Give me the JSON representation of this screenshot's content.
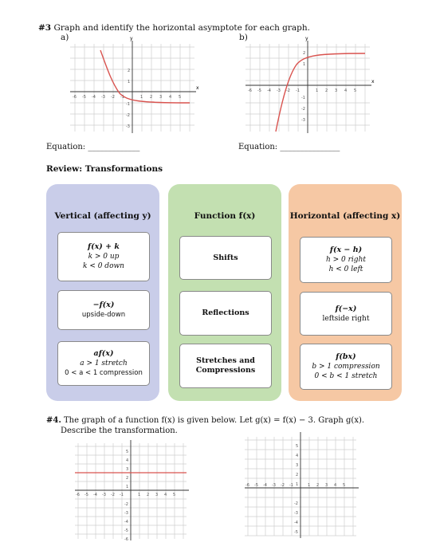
{
  "q3": {
    "number": "#3",
    "text": " Graph and identify the horizontal asymptote for each graph.",
    "label_a": "a)",
    "label_b": "b)",
    "equation_a": "Equation: _____________",
    "equation_b": "Equation: _______________"
  },
  "review": {
    "title": "Review: Transformations",
    "panels": [
      {
        "header": "Vertical (affecting y)",
        "boxes": [
          {
            "line1": "f(x) + k",
            "line2": "k > 0 up",
            "line3": "k < 0 down"
          },
          {
            "line1": "−f(x)",
            "line2": "upside-down"
          },
          {
            "line1": "af(x)",
            "line2": "a > 1 stretch",
            "line3": "0 < a < 1 compression"
          }
        ]
      },
      {
        "header": "Function f(x)",
        "boxes": [
          {
            "line1": "Shifts"
          },
          {
            "line1": "Reflections"
          },
          {
            "line1": "Stretches and",
            "line2": "Compressions"
          }
        ]
      },
      {
        "header": "Horizontal (affecting x)",
        "boxes": [
          {
            "line1": "f(x − h)",
            "line2": "h > 0 right",
            "line3": "h < 0 left"
          },
          {
            "line1": "f(−x)",
            "line2": "leftside right"
          },
          {
            "line1": "f(bx)",
            "line2": "b > 1 compression",
            "line3": "0 < b < 1 stretch"
          }
        ]
      }
    ]
  },
  "q4": {
    "number": "#4.",
    "line1": " The graph of a function f(x) is given below.  Let g(x) = f(x) − 3.  Graph g(x).",
    "line2": "Describe the transformation."
  },
  "graphs": {
    "tick_labels_x_neg": [
      "-6",
      "-5",
      "-4",
      "-3",
      "-2",
      "-1"
    ],
    "tick_labels_x_pos": [
      "1",
      "2",
      "3",
      "4",
      "5"
    ],
    "axis_x": "x",
    "axis_y": "y",
    "curve_color": "#d9534f"
  }
}
